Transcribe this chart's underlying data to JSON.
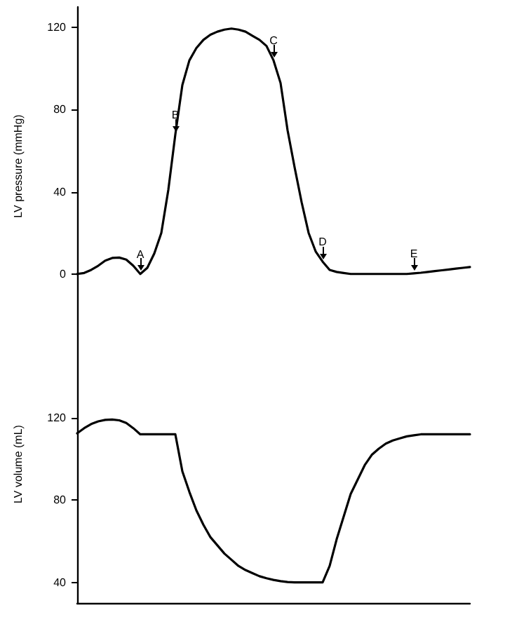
{
  "chart_data": [
    {
      "type": "line",
      "ylabel": "LV pressure (mmHg)",
      "categories": [
        null,
        null,
        null,
        null,
        null,
        null,
        null,
        null,
        null,
        null,
        null,
        null,
        null,
        null,
        null,
        null,
        null,
        null,
        null,
        null,
        null,
        null,
        null,
        null,
        null,
        null,
        null,
        null,
        null,
        null,
        null,
        null,
        null,
        null,
        null,
        null,
        null,
        null,
        null,
        null,
        null,
        null,
        null,
        null,
        null,
        null,
        null,
        null,
        null,
        null,
        null,
        null,
        null,
        null,
        null,
        null,
        null
      ],
      "series": [
        {
          "color": "#000000",
          "values": [
            0,
            0.5,
            2,
            4,
            6.5,
            7.8,
            8,
            7,
            4,
            0,
            3,
            10,
            20,
            41,
            68,
            92,
            104,
            110,
            114,
            116.5,
            118,
            119,
            119.5,
            119,
            118,
            116,
            114,
            111,
            104,
            93,
            70,
            52,
            35,
            20,
            11,
            6,
            2,
            1,
            0.5,
            0,
            0,
            0,
            0,
            0,
            0,
            0,
            0,
            0,
            0.3,
            0.6,
            1,
            1.4,
            1.8,
            2.2,
            2.6,
            3,
            3.4
          ],
          "value_labels": [
            null,
            null,
            null,
            null,
            null,
            null,
            null,
            null,
            null,
            "A",
            null,
            null,
            null,
            null,
            "B",
            null,
            null,
            null,
            null,
            null,
            null,
            null,
            null,
            null,
            null,
            null,
            null,
            null,
            "C",
            null,
            null,
            null,
            null,
            null,
            null,
            "D",
            null,
            null,
            null,
            null,
            null,
            null,
            null,
            null,
            null,
            null,
            null,
            null,
            "E",
            null,
            null,
            null,
            null,
            null,
            null,
            null,
            null
          ]
        }
      ],
      "ylim": [
        -25,
        130
      ],
      "yticks": [
        0,
        40,
        80,
        120
      ],
      "tick_labels": "y",
      "grid": false,
      "marker": "none",
      "line_style": "solid"
    },
    {
      "type": "line",
      "ylabel": "LV volume (mL)",
      "categories": [
        null,
        null,
        null,
        null,
        null,
        null,
        null,
        null,
        null,
        null,
        null,
        null,
        null,
        null,
        null,
        null,
        null,
        null,
        null,
        null,
        null,
        null,
        null,
        null,
        null,
        null,
        null,
        null,
        null,
        null,
        null,
        null,
        null,
        null,
        null,
        null,
        null,
        null,
        null,
        null,
        null,
        null,
        null,
        null,
        null,
        null,
        null,
        null,
        null,
        null,
        null,
        null,
        null,
        null,
        null,
        null,
        null
      ],
      "series": [
        {
          "color": "#000000",
          "values": [
            112.5,
            115,
            117,
            118.3,
            119,
            119.2,
            118.8,
            117.5,
            115,
            112,
            112,
            112,
            112,
            112,
            112,
            94,
            84,
            75,
            68,
            62,
            58,
            54,
            51,
            48,
            46,
            44.5,
            43,
            42,
            41.2,
            40.6,
            40.2,
            40,
            40,
            40,
            40,
            40,
            48,
            61,
            72,
            83,
            90,
            97,
            102,
            105,
            107.5,
            109,
            110,
            111,
            111.5,
            112,
            112,
            112,
            112,
            112,
            112,
            112,
            112
          ]
        }
      ],
      "ylim": [
        30,
        165
      ],
      "yticks": [
        40,
        80,
        120
      ],
      "tick_labels": "y",
      "grid": false,
      "marker": "none",
      "line_style": "solid"
    }
  ]
}
